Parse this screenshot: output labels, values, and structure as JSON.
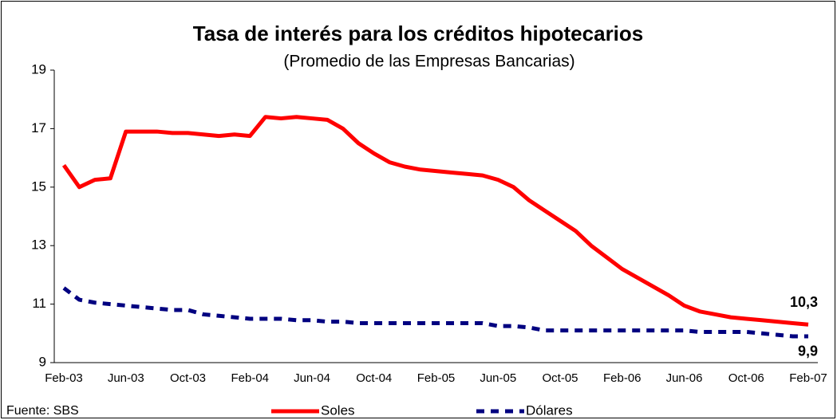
{
  "chart_data": {
    "type": "line",
    "title": "Tasa de interés para los créditos hipotecarios",
    "subtitle": "(Promedio de las Empresas Bancarias)",
    "source": "Fuente: SBS",
    "categories": [
      "Feb-03",
      null,
      null,
      null,
      "Jun-03",
      null,
      null,
      null,
      "Oct-03",
      null,
      null,
      null,
      "Feb-04",
      null,
      null,
      null,
      "Jun-04",
      null,
      null,
      null,
      "Oct-04",
      null,
      null,
      null,
      "Feb-05",
      null,
      null,
      null,
      "Jun-05",
      null,
      null,
      null,
      "Oct-05",
      null,
      null,
      null,
      "Feb-06",
      null,
      null,
      null,
      "Jun-06",
      null,
      null,
      null,
      "Oct-06",
      null,
      null,
      null,
      "Feb-07"
    ],
    "series": [
      {
        "name": "Soles",
        "color": "#ff0000",
        "dashed": false,
        "values": [
          15.75,
          15.0,
          15.25,
          15.3,
          16.9,
          16.9,
          16.9,
          16.85,
          16.85,
          16.8,
          16.75,
          16.8,
          16.75,
          17.4,
          17.35,
          17.4,
          17.35,
          17.3,
          17.0,
          16.5,
          16.15,
          15.85,
          15.7,
          15.6,
          15.55,
          15.5,
          15.45,
          15.4,
          15.25,
          15.0,
          14.55,
          14.2,
          13.85,
          13.5,
          13.0,
          12.6,
          12.2,
          11.9,
          11.6,
          11.3,
          10.95,
          10.75,
          10.65,
          10.55,
          10.5,
          10.45,
          10.4,
          10.35,
          10.3
        ],
        "value_labels": [
          null,
          null,
          null,
          null,
          null,
          null,
          null,
          null,
          null,
          null,
          null,
          null,
          null,
          null,
          null,
          null,
          null,
          null,
          null,
          null,
          null,
          null,
          null,
          null,
          null,
          null,
          null,
          null,
          null,
          null,
          null,
          null,
          null,
          null,
          null,
          null,
          null,
          null,
          null,
          null,
          null,
          null,
          null,
          null,
          null,
          null,
          null,
          null,
          "10,3"
        ]
      },
      {
        "name": "Dólares",
        "color": "#000080",
        "dashed": true,
        "values": [
          11.55,
          11.15,
          11.05,
          11.0,
          10.95,
          10.9,
          10.85,
          10.8,
          10.8,
          10.65,
          10.6,
          10.55,
          10.5,
          10.5,
          10.5,
          10.45,
          10.45,
          10.4,
          10.4,
          10.35,
          10.35,
          10.35,
          10.35,
          10.35,
          10.35,
          10.35,
          10.35,
          10.35,
          10.25,
          10.25,
          10.2,
          10.1,
          10.1,
          10.1,
          10.1,
          10.1,
          10.1,
          10.1,
          10.1,
          10.1,
          10.1,
          10.05,
          10.05,
          10.05,
          10.05,
          10.0,
          9.95,
          9.9,
          9.9
        ],
        "value_labels": [
          null,
          null,
          null,
          null,
          null,
          null,
          null,
          null,
          null,
          null,
          null,
          null,
          null,
          null,
          null,
          null,
          null,
          null,
          null,
          null,
          null,
          null,
          null,
          null,
          null,
          null,
          null,
          null,
          null,
          null,
          null,
          null,
          null,
          null,
          null,
          null,
          null,
          null,
          null,
          null,
          null,
          null,
          null,
          null,
          null,
          null,
          null,
          null,
          "9,9"
        ]
      }
    ],
    "ylim": [
      9,
      19
    ],
    "yticks": [
      9,
      11,
      13,
      15,
      17,
      19
    ],
    "grid": false
  }
}
